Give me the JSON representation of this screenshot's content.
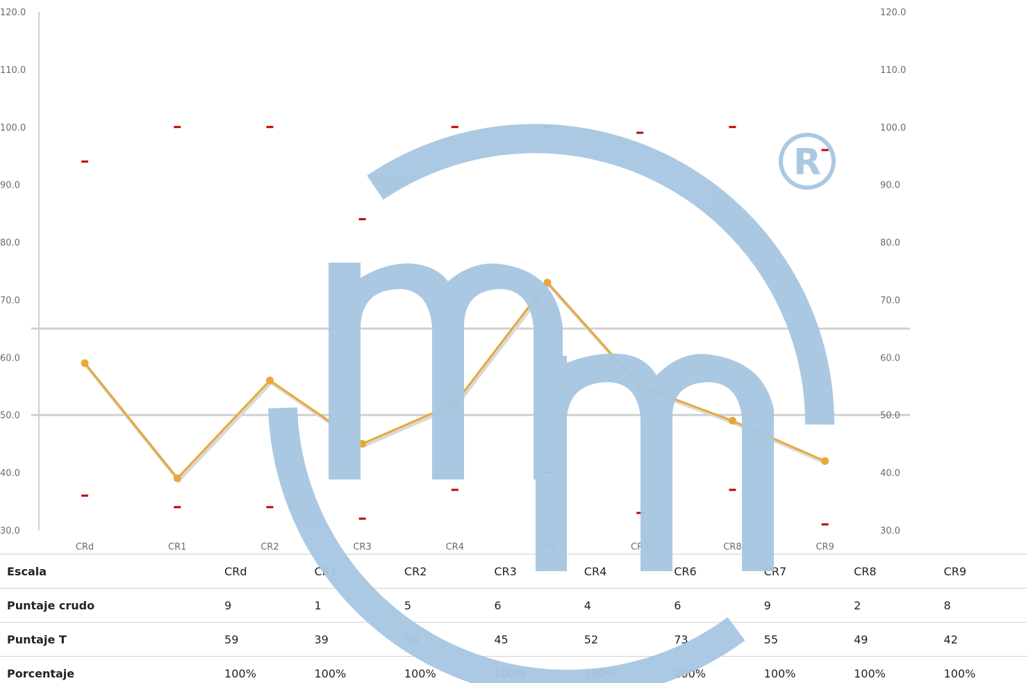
{
  "chart_data": {
    "type": "line",
    "categories": [
      "CRd",
      "CR1",
      "CR2",
      "CR3",
      "CR4",
      "CR6",
      "CR7",
      "CR8",
      "CR9"
    ],
    "series": [
      {
        "values": [
          59,
          39,
          56,
          45,
          52,
          73,
          55,
          49,
          42
        ],
        "color": "#e8a838"
      }
    ],
    "upper_marks": [
      94,
      100,
      100,
      84,
      100,
      100,
      99,
      100,
      96
    ],
    "lower_marks": [
      36,
      34,
      34,
      32,
      37,
      40,
      33,
      37,
      31
    ],
    "reference_lines": [
      50,
      65
    ],
    "ylim": [
      30,
      120
    ],
    "yticks": [
      "30.0",
      "40.0",
      "50.0",
      "60.0",
      "70.0",
      "80.0",
      "90.0",
      "100.0",
      "110.0",
      "120.0"
    ],
    "secondary_axis": true,
    "grid": false,
    "mark_color": "#c00000"
  },
  "table": {
    "header": {
      "label": "Escala",
      "cells": [
        "CRd",
        "CR1",
        "CR2",
        "CR3",
        "CR4",
        "CR6",
        "CR7",
        "CR8",
        "CR9"
      ]
    },
    "rows": [
      {
        "label": "Puntaje crudo",
        "cells": [
          "9",
          "1",
          "5",
          "6",
          "4",
          "6",
          "9",
          "2",
          "8"
        ]
      },
      {
        "label": "Puntaje T",
        "cells": [
          "59",
          "39",
          "56",
          "45",
          "52",
          "73",
          "55",
          "49",
          "42"
        ]
      },
      {
        "label": "Porcentaje",
        "cells": [
          "100%",
          "100%",
          "100%",
          "100%",
          "100%",
          "100%",
          "100%",
          "100%",
          "100%"
        ]
      }
    ]
  },
  "watermark": {
    "color": "#a7c6e2",
    "symbol": "®"
  }
}
